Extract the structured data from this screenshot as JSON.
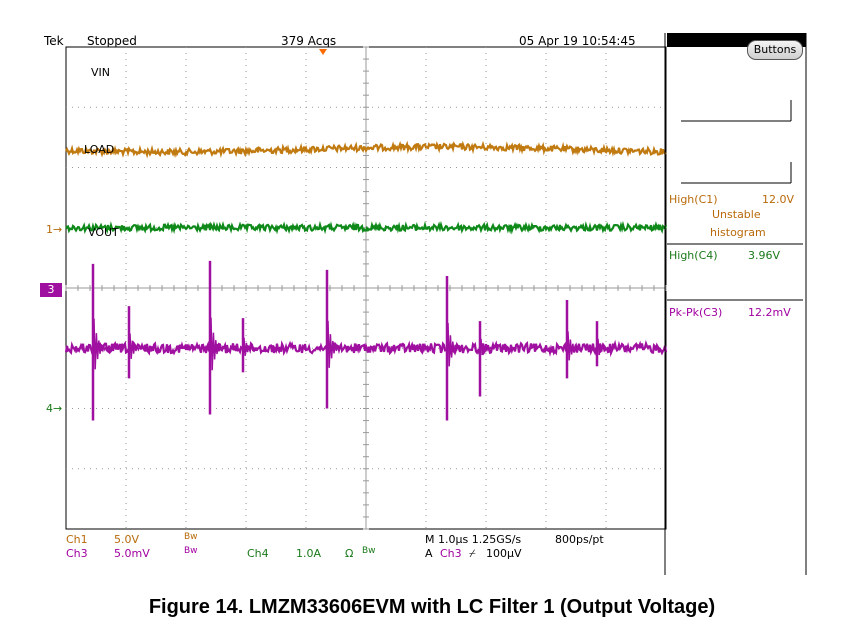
{
  "header": {
    "brand": "Tek",
    "state": "Stopped",
    "acqs": "379 Acqs",
    "datetime": "05 Apr 19 10:54:45"
  },
  "buttons_label": "Buttons",
  "channels": {
    "vin_label": "VIN",
    "load_label": "LOAD",
    "vout_label": "VOUT",
    "marker1": "1",
    "marker3": "3",
    "marker4": "4"
  },
  "measurements": {
    "high_c1_label": "High(C1)",
    "high_c1_value": "12.0V",
    "high_c1_note1": "Unstable",
    "high_c1_note2": "histogram",
    "high_c4_label": "High(C4)",
    "high_c4_value": "3.96V",
    "pkpk_c3_label": "Pk-Pk(C3)",
    "pkpk_c3_value": "12.2mV"
  },
  "status": {
    "ch1": "Ch1",
    "ch1_scale": "5.0V",
    "ch3": "Ch3",
    "ch3_scale": "5.0mV",
    "bw": "Bw",
    "ch4": "Ch4",
    "ch4_scale": "1.0A",
    "ohm": "Ω",
    "timebase": "M 1.0µs 1.25GS/s",
    "resolution": "800ps/pt",
    "trigger_a": "A",
    "trigger_src": "Ch3",
    "trigger_slope": "⌿",
    "trigger_level": "100µV"
  },
  "caption": "Figure 14. LMZM33606EVM with LC Filter 1 (Output Voltage)",
  "colors": {
    "vin": "#c07a10",
    "load": "#0f8a1a",
    "vout": "#a010a0",
    "grid": "#9a9a9a"
  },
  "chart_data": {
    "type": "line",
    "title": "",
    "xlabel": "",
    "ylabel": "",
    "grid": true,
    "x_divisions": 10,
    "y_divisions": 8,
    "time_per_div": "1.0µs",
    "series": [
      {
        "name": "VIN",
        "channel": "Ch1",
        "scale": "5.0V",
        "level_div": 2.3,
        "noise_div": 0.05
      },
      {
        "name": "LOAD",
        "channel": "Ch4",
        "scale": "1.0A",
        "level_div": 1.0,
        "noise_div": 0.05
      },
      {
        "name": "VOUT",
        "channel": "Ch3",
        "scale": "5.0mV",
        "level_div": -1.0,
        "noise_div": 0.08,
        "spike_times_div": [
          0.45,
          1.05,
          2.4,
          2.95,
          4.35,
          6.35,
          6.9,
          8.35,
          8.85
        ],
        "spike_up_div": [
          1.4,
          0.7,
          1.45,
          0.5,
          1.3,
          1.2,
          0.45,
          0.8,
          0.45
        ],
        "spike_down_div": [
          1.2,
          0.5,
          1.1,
          0.4,
          1.0,
          1.2,
          0.8,
          0.5,
          0.3
        ]
      }
    ]
  }
}
